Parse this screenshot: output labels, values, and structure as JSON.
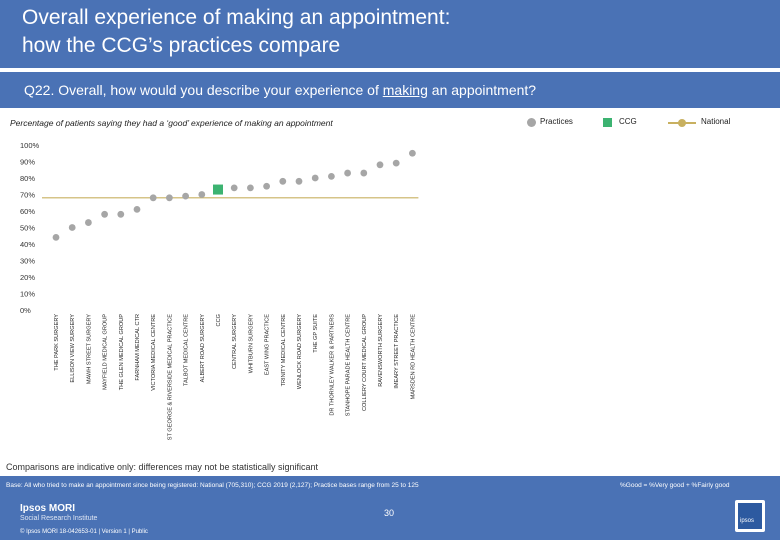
{
  "header": {
    "title_line1": "Overall experience of making an appointment:",
    "title_line2": "how the CCG’s practices compare",
    "question_pre": "Q22. Overall, how would you describe your experience of ",
    "question_em": "making",
    "question_post": " an appointment?"
  },
  "subtitle": "Percentage of patients saying they had  a ‘good’ experience of making an appointment",
  "legend": {
    "practices": "Practices",
    "ccg": "CCG",
    "national": "National"
  },
  "colors": {
    "practice_dot": "#a6a6a6",
    "ccg_square": "#3cb371",
    "national_line": "#c8b060",
    "band": "#4a72b5"
  },
  "chart_data": {
    "type": "scatter",
    "categories": [
      "THE PARK SURGERY",
      "ELLISON VIEW SURGERY",
      "MAWH STREET SURGERY",
      "MAYFIELD MEDICAL GROUP",
      "THE GLEN MEDICAL GROUP",
      "FARNHAM MEDICAL CTR",
      "VICTORIA MEDICAL CENTRE",
      "ST GEORGE & RIVERSIDE MEDICAL PRACTICE",
      "TALBOT MEDICAL CENTRE",
      "ALBERT ROAD SURGERY",
      "CCG",
      "CENTRAL SURGERY",
      "WHITBURN SURGERY",
      "EAST WING PRACTICE",
      "TRINITY MEDICAL CENTRE",
      "WENLOCK ROAD SURGERY",
      "THE GP SUITE",
      "DR THORNLEY WALKER & PARTNERS",
      "STANHOPE PARADE HEALTH CENTRE",
      "COLLIERY COURT MEDICAL GROUP",
      "RAVENSWORTH SURGERY",
      "IMEARY STREET PRACTICE",
      "MARSDEN RD HEALTH CENTRE"
    ],
    "series": [
      {
        "name": "Practices",
        "values": [
          44,
          50,
          53,
          58,
          58,
          61,
          68,
          68,
          69,
          70,
          null,
          74,
          74,
          75,
          78,
          78,
          80,
          81,
          83,
          83,
          88,
          89,
          95
        ]
      },
      {
        "name": "CCG",
        "values": [
          null,
          null,
          null,
          null,
          null,
          null,
          null,
          null,
          null,
          null,
          73,
          null,
          null,
          null,
          null,
          null,
          null,
          null,
          null,
          null,
          null,
          null,
          null
        ]
      }
    ],
    "national": 68,
    "ylim": [
      0,
      100
    ],
    "yticks": [
      "0%",
      "10%",
      "20%",
      "30%",
      "40%",
      "50%",
      "60%",
      "70%",
      "80%",
      "90%",
      "100%"
    ],
    "grid": false,
    "legend_position": "top-right"
  },
  "footer": {
    "caveat": "Comparisons are indicative only: differences may not be statistically significant",
    "base": "Base: All who tried to make an appointment since being registered: National (705,310); CCG 2019 (2,127); Practice bases range from 25 to 125",
    "good_def": "%Good = %Very good + %Fairly good",
    "logo_brand": "Ipsos MORI",
    "logo_sub": "Social Research Institute",
    "copyright": "© Ipsos MORI     18-042653-01 | Version 1 | Public",
    "page_number": "30"
  }
}
